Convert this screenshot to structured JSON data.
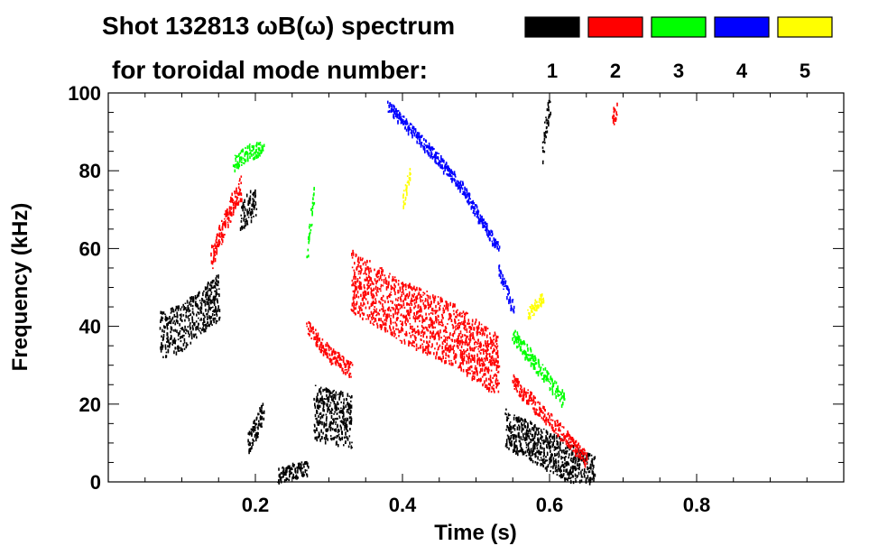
{
  "chart_data": {
    "type": "scatter",
    "title_line1": "Shot 132813 ωB(ω) spectrum",
    "title_line2": "for toroidal mode number:",
    "xlabel": "Time (s)",
    "ylabel": "Frequency (kHz)",
    "xlim": [
      0.0,
      1.0
    ],
    "ylim": [
      0,
      100
    ],
    "xticks": [
      0.2,
      0.4,
      0.6,
      0.8
    ],
    "xtick_labels": [
      "0.2",
      "0.4",
      "0.6",
      "0.8"
    ],
    "yticks": [
      0,
      20,
      40,
      60,
      80,
      100
    ],
    "ytick_labels": [
      "0",
      "20",
      "40",
      "60",
      "80",
      "100"
    ],
    "legend": [
      {
        "label": "1",
        "color": "#000000"
      },
      {
        "label": "2",
        "color": "#ff0000"
      },
      {
        "label": "3",
        "color": "#00ff00"
      },
      {
        "label": "4",
        "color": "#0000ff"
      },
      {
        "label": "5",
        "color": "#ffff00"
      }
    ],
    "series": [
      {
        "name": "n=1",
        "color": "#000000",
        "segments": [
          {
            "t": [
              0.07,
              0.1,
              0.13,
              0.15
            ],
            "f": [
              38,
              40,
              45,
              48
            ],
            "spread": 6
          },
          {
            "t": [
              0.18,
              0.2
            ],
            "f": [
              68,
              73
            ],
            "spread": 4
          },
          {
            "t": [
              0.19,
              0.21
            ],
            "f": [
              10,
              18
            ],
            "spread": 3
          },
          {
            "t": [
              0.23,
              0.27
            ],
            "f": [
              2,
              4
            ],
            "spread": 2
          },
          {
            "t": [
              0.28,
              0.33
            ],
            "f": [
              18,
              16
            ],
            "spread": 7
          },
          {
            "t": [
              0.54,
              0.58,
              0.62,
              0.66
            ],
            "f": [
              14,
              10,
              6,
              2
            ],
            "spread": 5
          },
          {
            "t": [
              0.59,
              0.6
            ],
            "f": [
              85,
              98
            ],
            "spread": 3
          }
        ]
      },
      {
        "name": "n=2",
        "color": "#ff0000",
        "segments": [
          {
            "t": [
              0.14,
              0.16,
              0.18
            ],
            "f": [
              58,
              68,
              76
            ],
            "spread": 3
          },
          {
            "t": [
              0.27,
              0.3,
              0.33
            ],
            "f": [
              40,
              33,
              29
            ],
            "spread": 2
          },
          {
            "t": [
              0.33,
              0.4,
              0.47,
              0.53
            ],
            "f": [
              52,
              44,
              38,
              30
            ],
            "spread": 8
          },
          {
            "t": [
              0.55,
              0.58,
              0.62,
              0.65
            ],
            "f": [
              26,
              20,
              12,
              6
            ],
            "spread": 2
          },
          {
            "t": [
              0.685,
              0.69
            ],
            "f": [
              93,
              96
            ],
            "spread": 2
          }
        ]
      },
      {
        "name": "n=3",
        "color": "#00ff00",
        "segments": [
          {
            "t": [
              0.17,
              0.19,
              0.21
            ],
            "f": [
              82,
              85,
              86
            ],
            "spread": 2
          },
          {
            "t": [
              0.27,
              0.28
            ],
            "f": [
              60,
              75
            ],
            "spread": 2
          },
          {
            "t": [
              0.55,
              0.58,
              0.62
            ],
            "f": [
              38,
              31,
              21
            ],
            "spread": 2
          }
        ]
      },
      {
        "name": "n=4",
        "color": "#0000ff",
        "segments": [
          {
            "t": [
              0.38,
              0.43,
              0.48,
              0.53
            ],
            "f": [
              97,
              87,
              76,
              60
            ],
            "spread": 1.5
          },
          {
            "t": [
              0.53,
              0.55
            ],
            "f": [
              55,
              45
            ],
            "spread": 1.5
          }
        ]
      },
      {
        "name": "n=5",
        "color": "#ffff00",
        "segments": [
          {
            "t": [
              0.4,
              0.41
            ],
            "f": [
              72,
              80
            ],
            "spread": 1.5
          },
          {
            "t": [
              0.57,
              0.59
            ],
            "f": [
              43,
              48
            ],
            "spread": 1.5
          }
        ]
      }
    ]
  }
}
